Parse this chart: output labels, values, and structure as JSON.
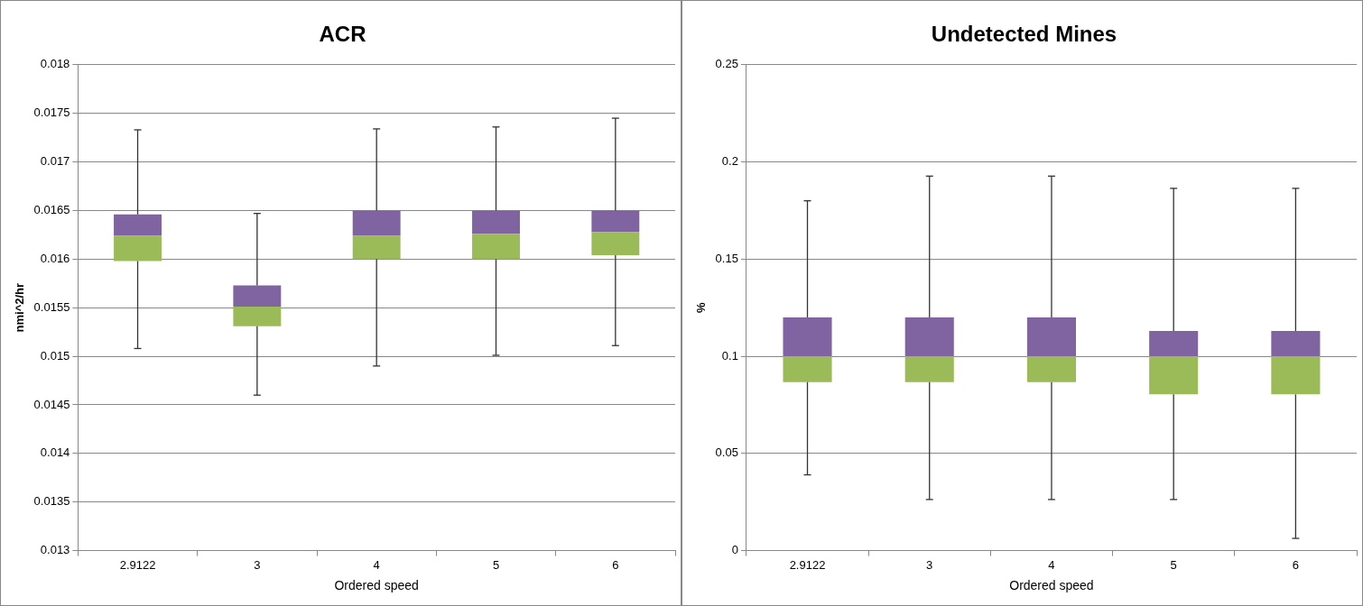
{
  "chart_data": [
    {
      "type": "box",
      "title": "ACR",
      "xlabel": "Ordered speed",
      "ylabel": "nmi^2/hr",
      "categories": [
        "2.9122",
        "3",
        "4",
        "5",
        "6"
      ],
      "color": "#8064a2",
      "colors": [
        "#9bbb59",
        "#9bbb59",
        "#9bbb59",
        "#9bbb59",
        "#9bbb59"
      ],
      "boxes": [
        {
          "low": 0.01508,
          "q1": 0.01598,
          "median": 0.01624,
          "q3": 0.01646,
          "high": 0.01733
        },
        {
          "low": 0.0146,
          "q1": 0.01531,
          "median": 0.01551,
          "q3": 0.01573,
          "high": 0.01647
        },
        {
          "low": 0.0149,
          "q1": 0.016,
          "median": 0.01624,
          "q3": 0.0165,
          "high": 0.01734
        },
        {
          "low": 0.01501,
          "q1": 0.016,
          "median": 0.01626,
          "q3": 0.0165,
          "high": 0.01736
        },
        {
          "low": 0.01511,
          "q1": 0.01604,
          "median": 0.01628,
          "q3": 0.0165,
          "high": 0.01745
        }
      ],
      "ylim": [
        0.013,
        0.018
      ],
      "yticks": [
        0.013,
        0.0135,
        0.014,
        0.0145,
        0.015,
        0.0155,
        0.016,
        0.0165,
        0.017,
        0.0175,
        0.018
      ],
      "grid": "y",
      "legend": false
    },
    {
      "type": "box",
      "title": "Undetected Mines",
      "xlabel": "Ordered speed",
      "ylabel": "%",
      "categories": [
        "2.9122",
        "3",
        "4",
        "5",
        "6"
      ],
      "color": "#8064a2",
      "colors": [
        "#9bbb59",
        "#9bbb59",
        "#9bbb59",
        "#9bbb59",
        "#9bbb59"
      ],
      "boxes": [
        {
          "low": 0.039,
          "q1": 0.0867,
          "median": 0.1,
          "q3": 0.12,
          "high": 0.18
        },
        {
          "low": 0.0263,
          "q1": 0.0867,
          "median": 0.1,
          "q3": 0.12,
          "high": 0.1927
        },
        {
          "low": 0.0263,
          "q1": 0.0867,
          "median": 0.1,
          "q3": 0.12,
          "high": 0.1927
        },
        {
          "low": 0.0263,
          "q1": 0.0804,
          "median": 0.1,
          "q3": 0.113,
          "high": 0.1864
        },
        {
          "low": 0.0063,
          "q1": 0.0804,
          "median": 0.1,
          "q3": 0.113,
          "high": 0.1864
        }
      ],
      "ylim": [
        0,
        0.25
      ],
      "yticks": [
        0,
        0.05,
        0.1,
        0.15,
        0.2,
        0.25
      ],
      "grid": "y",
      "legend": false
    }
  ]
}
